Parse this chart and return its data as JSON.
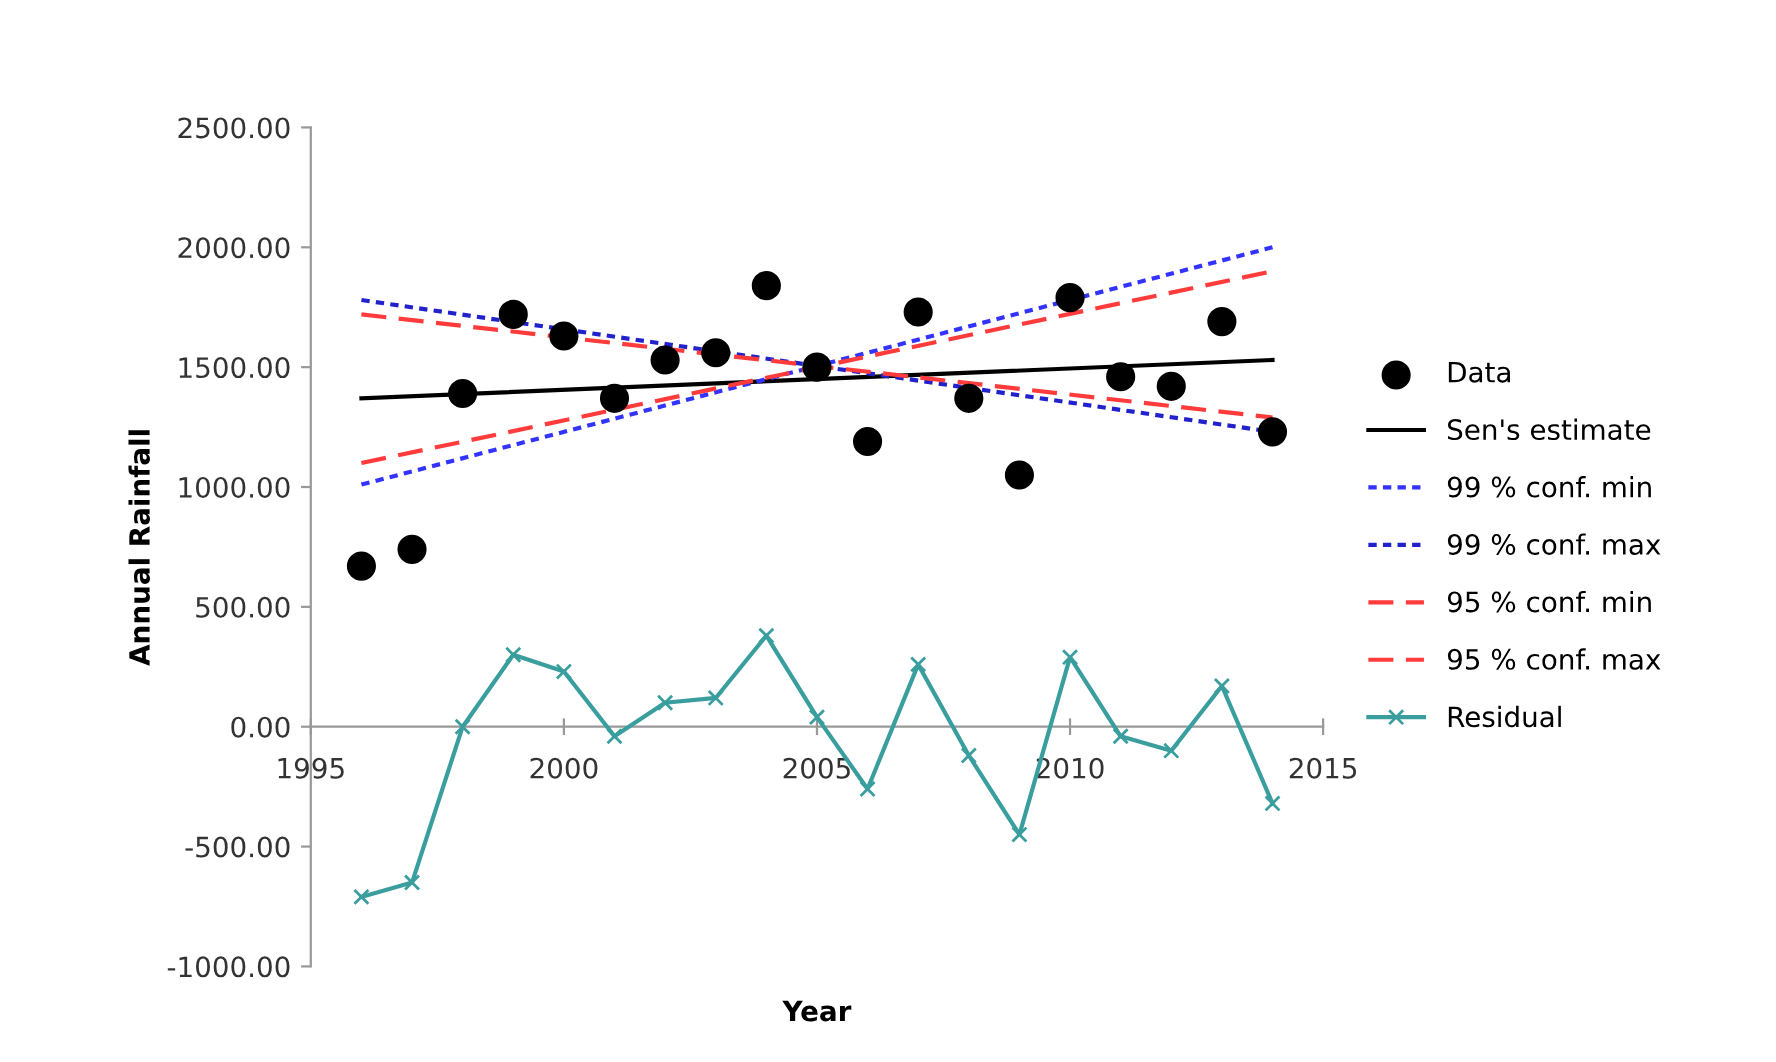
{
  "chart_data": {
    "type": "scatter",
    "xlabel": "Year",
    "ylabel": "Annual Rainfall",
    "xlim": [
      1995,
      2015
    ],
    "xticks": [
      1995,
      2000,
      2005,
      2010,
      2015
    ],
    "ylim": [
      -1000,
      2500
    ],
    "yticks": [
      {
        "value": -1000,
        "label": "-1000.00"
      },
      {
        "value": -500,
        "label": "-500.00"
      },
      {
        "value": 0,
        "label": "0.00"
      },
      {
        "value": 500,
        "label": "500.00"
      },
      {
        "value": 1000,
        "label": "1000.00"
      },
      {
        "value": 1500,
        "label": "1500.00"
      },
      {
        "value": 2000,
        "label": "2000.00"
      },
      {
        "value": 2500,
        "label": "2500.00"
      }
    ],
    "grid": false,
    "legend": "right",
    "series": [
      {
        "name": "Data",
        "color": "#000000",
        "marker": "circle",
        "x": [
          1996,
          1997,
          1998,
          1999,
          2000,
          2001,
          2002,
          2003,
          2004,
          2005,
          2006,
          2007,
          2008,
          2009,
          2010,
          2011,
          2012,
          2013,
          2014
        ],
        "values": [
          670,
          740,
          1390,
          1720,
          1630,
          1370,
          1530,
          1560,
          1840,
          1500,
          1190,
          1730,
          1370,
          1050,
          1790,
          1460,
          1420,
          1690,
          1230
        ]
      },
      {
        "name": "Sen's estimate",
        "type": "line",
        "color": "#000000",
        "line_style": "solid",
        "marker": "none",
        "x": [
          1996,
          2014
        ],
        "values": [
          1370,
          1530
        ]
      },
      {
        "name": "99 % conf. min",
        "type": "line",
        "color": "#3333ff",
        "line_style": "dotted",
        "marker": "none",
        "x": [
          1996,
          2014
        ],
        "values": [
          1010,
          2000
        ]
      },
      {
        "name": "99 % conf. max",
        "type": "line",
        "color": "#2222cc",
        "line_style": "dotted",
        "marker": "none",
        "x": [
          1996,
          2014
        ],
        "values": [
          1780,
          1230
        ]
      },
      {
        "name": "95 % conf. min",
        "type": "line",
        "color": "#ff3b3b",
        "line_style": "dashed",
        "marker": "none",
        "x": [
          1996,
          2014
        ],
        "values": [
          1100,
          1900
        ]
      },
      {
        "name": "95 % conf. max",
        "type": "line",
        "color": "#ff3b3b",
        "line_style": "dashed",
        "marker": "none",
        "x": [
          1996,
          2014
        ],
        "values": [
          1720,
          1290
        ]
      },
      {
        "name": "Residual",
        "type": "line",
        "color": "#3a9e9e",
        "line_style": "solid",
        "marker": "cross",
        "x": [
          1996,
          1997,
          1998,
          1999,
          2000,
          2001,
          2002,
          2003,
          2004,
          2005,
          2006,
          2007,
          2008,
          2009,
          2010,
          2011,
          2012,
          2013,
          2014
        ],
        "values": [
          -710,
          -650,
          0,
          300,
          230,
          -40,
          100,
          120,
          380,
          40,
          -260,
          260,
          -120,
          -450,
          290,
          -40,
          -100,
          170,
          -320
        ]
      }
    ]
  }
}
